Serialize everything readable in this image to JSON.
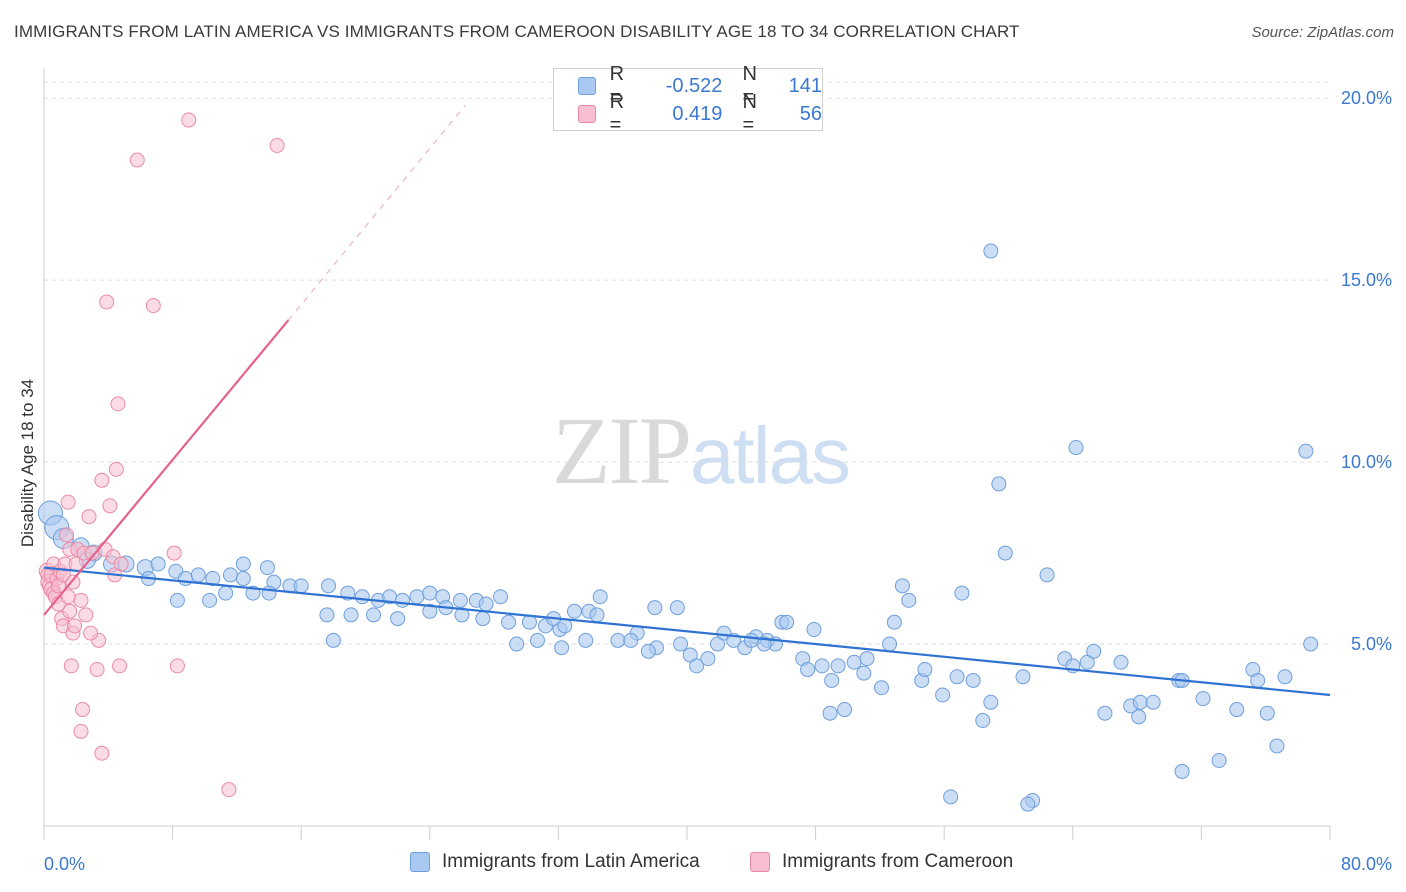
{
  "title": "IMMIGRANTS FROM LATIN AMERICA VS IMMIGRANTS FROM CAMEROON DISABILITY AGE 18 TO 34 CORRELATION CHART",
  "source": "Source: ZipAtlas.com",
  "watermark": {
    "zip": "ZIP",
    "atlas": "atlas"
  },
  "legend_top": [
    {
      "r_label": "R =",
      "r_value": "-0.522",
      "n_label": "N =",
      "n_value": "141"
    },
    {
      "r_label": "R =",
      "r_value": "0.419",
      "n_label": "N =",
      "n_value": "56"
    }
  ],
  "legend_bottom": [
    "Immigrants from Latin America",
    "Immigrants from Cameroon"
  ],
  "colors": {
    "blue_fill": "#a9c8f0",
    "blue_stroke": "#6f9fdc",
    "blue_line": "#2f72d2",
    "pink_fill": "#f7bfcf",
    "pink_stroke": "#ea8aa6",
    "pink_line": "#e5628c",
    "axis_text": "#3b78d0",
    "grid": "#dddddd"
  },
  "chart_data": {
    "type": "scatter",
    "title": "IMMIGRANTS FROM LATIN AMERICA VS IMMIGRANTS FROM CAMEROON DISABILITY AGE 18 TO 34 CORRELATION CHART",
    "xlabel": "",
    "ylabel": "Disability Age 18 to 34",
    "xlim": [
      0,
      80
    ],
    "ylim": [
      0,
      20.5
    ],
    "x_tick_labels": [
      "0.0%",
      "80.0%"
    ],
    "y_ticks": [
      5,
      10,
      15,
      20
    ],
    "y_tick_labels": [
      "5.0%",
      "10.0%",
      "15.0%",
      "20.0%"
    ],
    "grid": true,
    "legend_placement": "top-center and bottom",
    "series": [
      {
        "name": "Immigrants from Latin America",
        "color": "#a9c8f0",
        "trend": {
          "x": [
            0,
            80
          ],
          "y": [
            7.1,
            3.6
          ]
        },
        "points": [
          [
            0.4,
            8.6,
            12
          ],
          [
            0.8,
            8.2,
            12
          ],
          [
            1.2,
            7.9,
            10
          ],
          [
            2.3,
            7.7,
            8
          ],
          [
            3.1,
            7.5,
            8
          ],
          [
            2.7,
            7.3,
            8
          ],
          [
            4.2,
            7.2,
            8
          ],
          [
            5.1,
            7.2,
            8
          ],
          [
            6.3,
            7.1,
            8
          ],
          [
            7.1,
            7.2,
            7
          ],
          [
            8.2,
            7.0,
            7
          ],
          [
            6.5,
            6.8,
            7
          ],
          [
            8.8,
            6.8,
            7
          ],
          [
            9.6,
            6.9,
            7
          ],
          [
            10.5,
            6.8,
            7
          ],
          [
            11.6,
            6.9,
            7
          ],
          [
            12.4,
            6.8,
            7
          ],
          [
            12.4,
            7.2,
            7
          ],
          [
            13.9,
            7.1,
            7
          ],
          [
            14.3,
            6.7,
            7
          ],
          [
            15.3,
            6.6,
            7
          ],
          [
            16.0,
            6.6,
            7
          ],
          [
            14.0,
            6.4,
            7
          ],
          [
            13.0,
            6.4,
            7
          ],
          [
            11.3,
            6.4,
            7
          ],
          [
            10.3,
            6.2,
            7
          ],
          [
            8.3,
            6.2,
            7
          ],
          [
            17.7,
            6.6,
            7
          ],
          [
            18.9,
            6.4,
            7
          ],
          [
            19.8,
            6.3,
            7
          ],
          [
            20.8,
            6.2,
            7
          ],
          [
            21.5,
            6.3,
            7
          ],
          [
            22.3,
            6.2,
            7
          ],
          [
            23.2,
            6.3,
            7
          ],
          [
            24.0,
            6.4,
            7
          ],
          [
            24.8,
            6.3,
            7
          ],
          [
            25.9,
            6.2,
            7
          ],
          [
            26.9,
            6.2,
            7
          ],
          [
            27.5,
            6.1,
            7
          ],
          [
            28.4,
            6.3,
            7
          ],
          [
            17.6,
            5.8,
            7
          ],
          [
            19.1,
            5.8,
            7
          ],
          [
            20.5,
            5.8,
            7
          ],
          [
            22.0,
            5.7,
            7
          ],
          [
            24.0,
            5.9,
            7
          ],
          [
            25.0,
            6.0,
            7
          ],
          [
            26.0,
            5.8,
            7
          ],
          [
            27.3,
            5.7,
            7
          ],
          [
            28.9,
            5.6,
            7
          ],
          [
            30.2,
            5.6,
            7
          ],
          [
            31.2,
            5.5,
            7
          ],
          [
            32.1,
            5.4,
            7
          ],
          [
            31.7,
            5.7,
            7
          ],
          [
            33.0,
            5.9,
            7
          ],
          [
            33.9,
            5.9,
            7
          ],
          [
            34.4,
            5.8,
            7
          ],
          [
            34.6,
            6.3,
            7
          ],
          [
            32.4,
            5.5,
            7
          ],
          [
            29.4,
            5.0,
            7
          ],
          [
            30.7,
            5.1,
            7
          ],
          [
            18.0,
            5.1,
            7
          ],
          [
            32.2,
            4.9,
            7
          ],
          [
            33.7,
            5.1,
            7
          ],
          [
            35.7,
            5.1,
            7
          ],
          [
            36.9,
            5.3,
            7
          ],
          [
            36.5,
            5.1,
            7
          ],
          [
            38.0,
            6.0,
            7
          ],
          [
            39.4,
            6.0,
            7
          ],
          [
            39.6,
            5.0,
            7
          ],
          [
            38.1,
            4.9,
            7
          ],
          [
            37.6,
            4.8,
            7
          ],
          [
            40.2,
            4.7,
            7
          ],
          [
            40.6,
            4.4,
            7
          ],
          [
            41.3,
            4.6,
            7
          ],
          [
            41.9,
            5.0,
            7
          ],
          [
            42.3,
            5.3,
            7
          ],
          [
            42.9,
            5.1,
            7
          ],
          [
            43.6,
            4.9,
            7
          ],
          [
            44.3,
            5.2,
            7
          ],
          [
            45.0,
            5.1,
            7
          ],
          [
            45.5,
            5.0,
            7
          ],
          [
            45.9,
            5.6,
            7
          ],
          [
            46.2,
            5.6,
            7
          ],
          [
            47.9,
            5.4,
            7
          ],
          [
            44.8,
            5.0,
            7
          ],
          [
            44.0,
            5.1,
            7
          ],
          [
            47.2,
            4.6,
            7
          ],
          [
            47.5,
            4.3,
            7
          ],
          [
            48.4,
            4.4,
            7
          ],
          [
            49.0,
            4.0,
            7
          ],
          [
            49.4,
            4.4,
            7
          ],
          [
            50.4,
            4.5,
            7
          ],
          [
            48.9,
            3.1,
            7
          ],
          [
            49.8,
            3.2,
            7
          ],
          [
            51.2,
            4.6,
            7
          ],
          [
            51.0,
            4.2,
            7
          ],
          [
            52.1,
            3.8,
            7
          ],
          [
            52.6,
            5.0,
            7
          ],
          [
            52.9,
            5.6,
            7
          ],
          [
            53.4,
            6.6,
            7
          ],
          [
            53.8,
            6.2,
            7
          ],
          [
            54.6,
            4.0,
            7
          ],
          [
            54.8,
            4.3,
            7
          ],
          [
            55.9,
            3.6,
            7
          ],
          [
            56.8,
            4.1,
            7
          ],
          [
            57.1,
            6.4,
            7
          ],
          [
            57.8,
            4.0,
            7
          ],
          [
            58.4,
            2.9,
            7
          ],
          [
            58.9,
            3.4,
            7
          ],
          [
            59.4,
            9.4,
            7
          ],
          [
            59.8,
            7.5,
            7
          ],
          [
            60.9,
            4.1,
            7
          ],
          [
            61.5,
            0.7,
            7
          ],
          [
            61.2,
            0.6,
            7
          ],
          [
            62.4,
            6.9,
            7
          ],
          [
            63.5,
            4.6,
            7
          ],
          [
            64.0,
            4.4,
            7
          ],
          [
            64.2,
            10.4,
            7
          ],
          [
            64.9,
            4.5,
            7
          ],
          [
            66.0,
            3.1,
            7
          ],
          [
            67.6,
            3.3,
            7
          ],
          [
            68.1,
            3.0,
            7
          ],
          [
            68.2,
            3.4,
            7
          ],
          [
            69.0,
            3.4,
            7
          ],
          [
            70.8,
            1.5,
            7
          ],
          [
            70.6,
            4.0,
            7
          ],
          [
            70.8,
            4.0,
            7
          ],
          [
            72.1,
            3.5,
            7
          ],
          [
            73.1,
            1.8,
            7
          ],
          [
            74.2,
            3.2,
            7
          ],
          [
            75.2,
            4.3,
            7
          ],
          [
            75.5,
            4.0,
            7
          ],
          [
            76.1,
            3.1,
            7
          ],
          [
            76.7,
            2.2,
            7
          ],
          [
            77.2,
            4.1,
            7
          ],
          [
            78.5,
            10.3,
            7
          ],
          [
            78.8,
            5.0,
            7
          ],
          [
            58.9,
            15.8,
            7
          ],
          [
            56.4,
            0.8,
            7
          ],
          [
            65.3,
            4.8,
            7
          ],
          [
            67.0,
            4.5,
            7
          ]
        ]
      },
      {
        "name": "Immigrants from Cameroon",
        "color": "#f7bfcf",
        "trend": {
          "x": [
            0,
            15.2
          ],
          "y": [
            5.8,
            13.9
          ]
        },
        "trend_dashed_to": {
          "x": 26.2,
          "y": 19.8
        },
        "points": [
          [
            0.2,
            7.0,
            8
          ],
          [
            0.3,
            6.9,
            8
          ],
          [
            0.3,
            6.7,
            8
          ],
          [
            0.4,
            6.6,
            8
          ],
          [
            0.5,
            6.5,
            8
          ],
          [
            0.5,
            6.9,
            8
          ],
          [
            0.6,
            7.2,
            7
          ],
          [
            0.6,
            6.4,
            7
          ],
          [
            0.7,
            6.3,
            7
          ],
          [
            0.8,
            6.8,
            7
          ],
          [
            0.9,
            6.6,
            7
          ],
          [
            1.0,
            7.0,
            7
          ],
          [
            1.1,
            5.7,
            7
          ],
          [
            1.2,
            5.5,
            7
          ],
          [
            1.2,
            6.9,
            7
          ],
          [
            1.3,
            7.2,
            7
          ],
          [
            1.4,
            8.0,
            7
          ],
          [
            1.5,
            8.9,
            7
          ],
          [
            1.6,
            7.6,
            7
          ],
          [
            1.6,
            5.9,
            7
          ],
          [
            1.8,
            6.7,
            7
          ],
          [
            1.8,
            5.3,
            7
          ],
          [
            1.9,
            5.5,
            7
          ],
          [
            2.0,
            7.2,
            7
          ],
          [
            1.7,
            4.4,
            7
          ],
          [
            2.1,
            7.6,
            7
          ],
          [
            2.3,
            6.2,
            7
          ],
          [
            2.5,
            7.5,
            7
          ],
          [
            2.6,
            5.8,
            7
          ],
          [
            2.8,
            8.5,
            7
          ],
          [
            3.0,
            7.5,
            7
          ],
          [
            3.3,
            4.3,
            7
          ],
          [
            3.4,
            5.1,
            7
          ],
          [
            3.6,
            2.0,
            7
          ],
          [
            3.6,
            9.5,
            7
          ],
          [
            3.8,
            7.6,
            7
          ],
          [
            3.9,
            14.4,
            7
          ],
          [
            4.1,
            8.8,
            7
          ],
          [
            4.3,
            7.4,
            7
          ],
          [
            4.4,
            6.9,
            7
          ],
          [
            4.5,
            9.8,
            7
          ],
          [
            4.6,
            11.6,
            7
          ],
          [
            4.7,
            4.4,
            7
          ],
          [
            4.8,
            7.2,
            7
          ],
          [
            2.4,
            3.2,
            7
          ],
          [
            2.3,
            2.6,
            7
          ],
          [
            5.8,
            18.3,
            7
          ],
          [
            6.8,
            14.3,
            7
          ],
          [
            8.1,
            7.5,
            7
          ],
          [
            8.3,
            4.4,
            7
          ],
          [
            9.0,
            19.4,
            7
          ],
          [
            11.5,
            1.0,
            7
          ],
          [
            14.5,
            18.7,
            7
          ],
          [
            2.9,
            5.3,
            7
          ],
          [
            0.9,
            6.1,
            7
          ],
          [
            1.5,
            6.3,
            7
          ]
        ]
      }
    ]
  }
}
